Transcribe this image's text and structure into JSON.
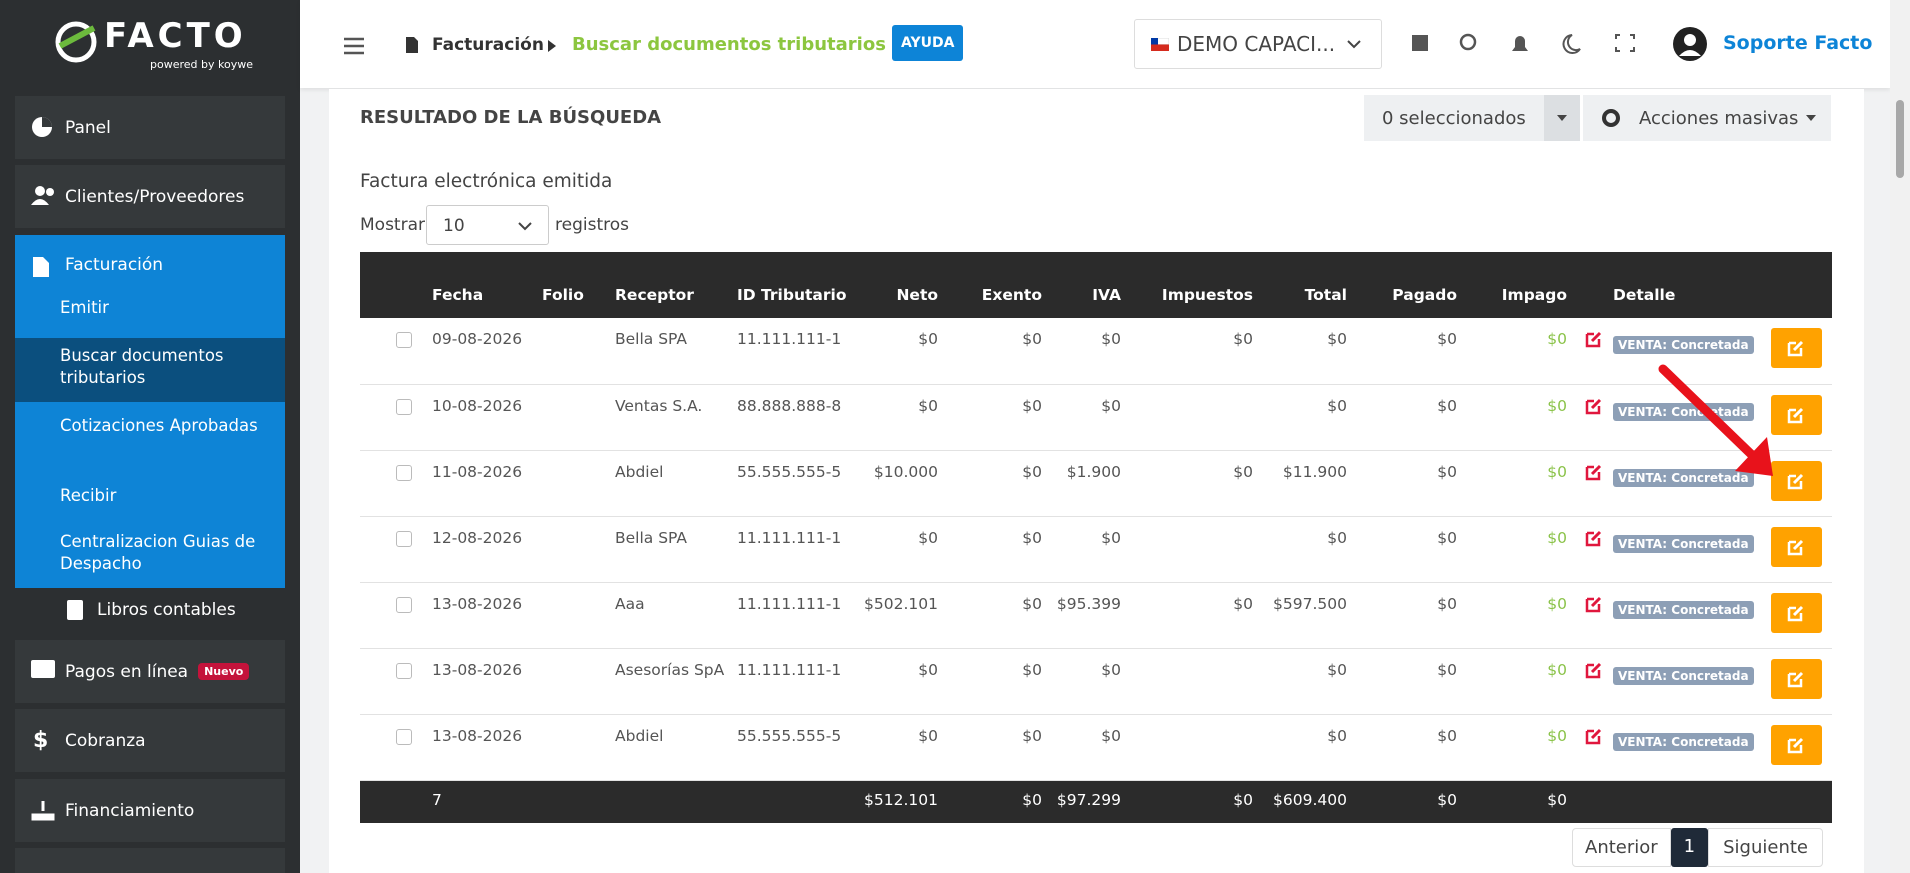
{
  "sidebar": {
    "logo": "FACTO",
    "powered": "powered by koywe",
    "menu": [
      {
        "label": "Panel"
      },
      {
        "label": "Clientes/Proveedores"
      }
    ],
    "facturacion": {
      "label": "Facturación",
      "items": [
        "Emitir",
        "Buscar documentos tributarios",
        "Cotizaciones Aprobadas",
        "Recibir",
        "Centralizacion Guias de Despacho"
      ]
    },
    "libros": "Libros contables",
    "menu2": [
      {
        "label": "Pagos en línea",
        "badge": "Nuevo"
      },
      {
        "label": "Cobranza"
      },
      {
        "label": "Financiamiento"
      }
    ]
  },
  "topbar": {
    "breadcrumb": [
      "Facturación",
      "Buscar documentos tributarios"
    ],
    "help": "AYUDA",
    "company": "DEMO CAPACI...",
    "user": "Soporte Facto"
  },
  "panel": {
    "title": "RESULTADO DE LA BÚSQUEDA",
    "selected": "0 seleccionados",
    "bulk": "Acciones masivas",
    "subtitle": "Factura electrónica emitida",
    "show": "Mostrar",
    "page_size": "10",
    "records": "registros"
  },
  "table": {
    "headers": [
      "Fecha",
      "Folio",
      "Receptor",
      "ID Tributario",
      "Neto",
      "Exento",
      "IVA",
      "Impuestos",
      "Total",
      "Pagado",
      "Impago",
      "Detalle"
    ],
    "rows": [
      [
        "09-08-2026",
        null,
        "Bella SPA",
        "11.111.111-1",
        "$0",
        "$0",
        "$0",
        "$0",
        "$0",
        "$0",
        "$0",
        "VENTA: Concretada"
      ],
      [
        "10-08-2026",
        null,
        "Ventas S.A.",
        "88.888.888-8",
        "$0",
        "$0",
        "$0",
        null,
        "$0",
        "$0",
        "$0",
        "VENTA: Concretada"
      ],
      [
        "11-08-2026",
        null,
        "Abdiel",
        "55.555.555-5",
        "$10.000",
        "$0",
        "$1.900",
        "$0",
        "$11.900",
        "$0",
        "$0",
        "VENTA: Concretada"
      ],
      [
        "12-08-2026",
        null,
        "Bella SPA",
        "11.111.111-1",
        "$0",
        "$0",
        "$0",
        null,
        "$0",
        "$0",
        "$0",
        "VENTA: Concretada"
      ],
      [
        "13-08-2026",
        null,
        "Aaa",
        "11.111.111-1",
        "$502.101",
        "$0",
        "$95.399",
        "$0",
        "$597.500",
        "$0",
        "$0",
        "VENTA: Concretada"
      ],
      [
        "13-08-2026",
        null,
        "Asesorías SpA",
        "11.111.111-1",
        "$0",
        "$0",
        "$0",
        null,
        "$0",
        "$0",
        "$0",
        "VENTA: Concretada"
      ],
      [
        "13-08-2026",
        null,
        "Abdiel",
        "55.555.555-5",
        "$0",
        "$0",
        "$0",
        null,
        "$0",
        "$0",
        "$0",
        "VENTA: Concretada"
      ]
    ],
    "footer": [
      "7",
      null,
      null,
      null,
      "$512.101",
      "$0",
      "$97.299",
      "$0",
      "$609.400",
      "$0",
      "$0",
      null
    ]
  },
  "pagination": {
    "prev": "Anterior",
    "current": "1",
    "next": "Siguiente"
  }
}
